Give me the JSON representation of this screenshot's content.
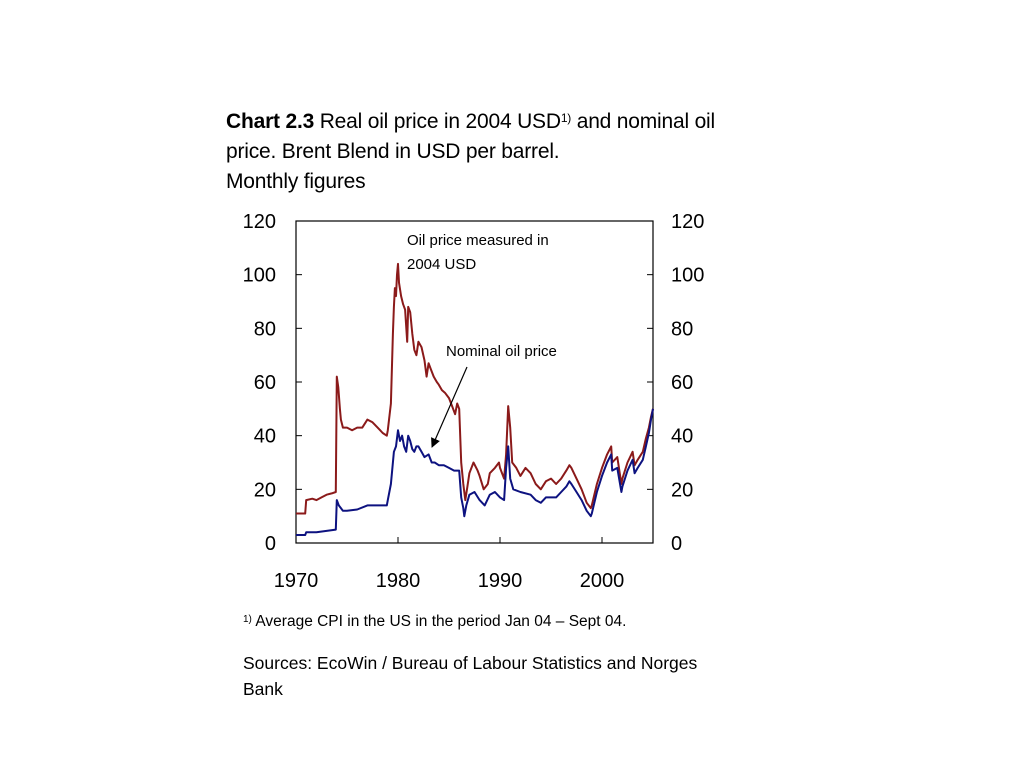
{
  "title": {
    "bold": "Chart 2.3",
    "text": " Real oil price in 2004 USD",
    "sup": "1)",
    "rest": " and nominal oil price. Brent Blend in USD per barrel.",
    "line3": "Monthly figures"
  },
  "footnote": {
    "sup": "1)",
    "text": " Average CPI in the US in the period Jan 04 – Sept 04."
  },
  "sources": "Sources: EcoWin / Bureau of Labour Statistics and Norges Bank",
  "chart_data": {
    "type": "line",
    "xlim": [
      1970,
      2005
    ],
    "ylim": [
      0,
      120
    ],
    "yticks": [
      0,
      20,
      40,
      60,
      80,
      100,
      120
    ],
    "xticks": [
      1970,
      1980,
      1990,
      2000
    ],
    "yticks_right": [
      0,
      20,
      40,
      60,
      80,
      100,
      120
    ],
    "grid": false,
    "annotations": [
      {
        "text_lines": [
          "Oil price measured in",
          "2004 USD"
        ],
        "target_series": "real"
      },
      {
        "text": "Nominal oil price",
        "target_series": "nominal",
        "arrow": true,
        "arrow_target": [
          1983.4,
          35
        ]
      }
    ],
    "colors": {
      "real": "#8B1A1A",
      "nominal": "#0D1280"
    },
    "series": [
      {
        "key": "real",
        "points": [
          [
            1970.0,
            11
          ],
          [
            1970.9,
            11
          ],
          [
            1971.0,
            16
          ],
          [
            1971.6,
            16.5
          ],
          [
            1972.0,
            16
          ],
          [
            1972.5,
            17
          ],
          [
            1973.0,
            18
          ],
          [
            1973.5,
            18.5
          ],
          [
            1973.9,
            19
          ],
          [
            1974.0,
            62
          ],
          [
            1974.15,
            58
          ],
          [
            1974.3,
            50
          ],
          [
            1974.4,
            46
          ],
          [
            1974.6,
            43
          ],
          [
            1975.0,
            43
          ],
          [
            1975.5,
            42
          ],
          [
            1976.0,
            43
          ],
          [
            1976.5,
            43
          ],
          [
            1977.0,
            46
          ],
          [
            1977.5,
            45
          ],
          [
            1978.0,
            43
          ],
          [
            1978.5,
            41
          ],
          [
            1978.9,
            40
          ],
          [
            1979.0,
            42
          ],
          [
            1979.3,
            52
          ],
          [
            1979.5,
            78
          ],
          [
            1979.6,
            88
          ],
          [
            1979.7,
            95
          ],
          [
            1979.8,
            92
          ],
          [
            1979.9,
            100
          ],
          [
            1980.0,
            104
          ],
          [
            1980.1,
            97
          ],
          [
            1980.3,
            92
          ],
          [
            1980.5,
            89
          ],
          [
            1980.7,
            87
          ],
          [
            1980.9,
            75
          ],
          [
            1981.0,
            88
          ],
          [
            1981.2,
            86
          ],
          [
            1981.4,
            78
          ],
          [
            1981.6,
            72
          ],
          [
            1981.8,
            70
          ],
          [
            1982.0,
            75
          ],
          [
            1982.3,
            73
          ],
          [
            1982.6,
            68
          ],
          [
            1982.8,
            62
          ],
          [
            1983.0,
            67
          ],
          [
            1983.2,
            65
          ],
          [
            1983.5,
            62
          ],
          [
            1983.8,
            60
          ],
          [
            1984.0,
            59
          ],
          [
            1984.3,
            57
          ],
          [
            1984.6,
            56
          ],
          [
            1985.0,
            54
          ],
          [
            1985.3,
            51
          ],
          [
            1985.6,
            48
          ],
          [
            1985.8,
            52
          ],
          [
            1986.0,
            50
          ],
          [
            1986.2,
            30
          ],
          [
            1986.4,
            22
          ],
          [
            1986.6,
            16
          ],
          [
            1986.8,
            21
          ],
          [
            1987.0,
            26
          ],
          [
            1987.4,
            30
          ],
          [
            1987.8,
            27
          ],
          [
            1988.0,
            25
          ],
          [
            1988.4,
            20
          ],
          [
            1988.8,
            22
          ],
          [
            1989.0,
            26
          ],
          [
            1989.5,
            28
          ],
          [
            1989.9,
            30
          ],
          [
            1990.0,
            28
          ],
          [
            1990.4,
            24
          ],
          [
            1990.6,
            33
          ],
          [
            1990.8,
            51
          ],
          [
            1991.0,
            43
          ],
          [
            1991.2,
            30
          ],
          [
            1991.6,
            28
          ],
          [
            1992.0,
            25
          ],
          [
            1992.5,
            28
          ],
          [
            1993.0,
            26
          ],
          [
            1993.5,
            22
          ],
          [
            1994.0,
            20
          ],
          [
            1994.5,
            23
          ],
          [
            1995.0,
            24
          ],
          [
            1995.5,
            22
          ],
          [
            1996.0,
            24
          ],
          [
            1996.5,
            27
          ],
          [
            1996.8,
            29
          ],
          [
            1997.0,
            28
          ],
          [
            1997.5,
            24
          ],
          [
            1998.0,
            20
          ],
          [
            1998.5,
            15
          ],
          [
            1998.9,
            13
          ],
          [
            1999.0,
            14
          ],
          [
            1999.5,
            22
          ],
          [
            2000.0,
            28
          ],
          [
            2000.5,
            33
          ],
          [
            2000.9,
            36
          ],
          [
            2001.0,
            30
          ],
          [
            2001.5,
            32
          ],
          [
            2001.9,
            22
          ],
          [
            2002.0,
            24
          ],
          [
            2002.5,
            30
          ],
          [
            2003.0,
            34
          ],
          [
            2003.2,
            29
          ],
          [
            2003.5,
            31
          ],
          [
            2004.0,
            34
          ],
          [
            2004.3,
            39
          ],
          [
            2004.6,
            43
          ],
          [
            2004.8,
            47
          ],
          [
            2005.0,
            50
          ]
        ]
      },
      {
        "key": "nominal",
        "points": [
          [
            1970.0,
            3
          ],
          [
            1970.9,
            3
          ],
          [
            1971.0,
            4
          ],
          [
            1972.0,
            4
          ],
          [
            1973.0,
            4.5
          ],
          [
            1973.9,
            5
          ],
          [
            1974.0,
            16
          ],
          [
            1974.2,
            14
          ],
          [
            1974.4,
            13
          ],
          [
            1974.6,
            12
          ],
          [
            1975.0,
            12
          ],
          [
            1976.0,
            12.5
          ],
          [
            1977.0,
            14
          ],
          [
            1978.0,
            14
          ],
          [
            1978.9,
            14
          ],
          [
            1979.0,
            16
          ],
          [
            1979.3,
            22
          ],
          [
            1979.5,
            30
          ],
          [
            1979.6,
            34
          ],
          [
            1979.8,
            36
          ],
          [
            1980.0,
            42
          ],
          [
            1980.2,
            38
          ],
          [
            1980.4,
            40
          ],
          [
            1980.6,
            36
          ],
          [
            1980.8,
            34
          ],
          [
            1981.0,
            40
          ],
          [
            1981.2,
            38
          ],
          [
            1981.4,
            35
          ],
          [
            1981.6,
            34
          ],
          [
            1981.8,
            36
          ],
          [
            1982.0,
            36
          ],
          [
            1982.3,
            34
          ],
          [
            1982.6,
            32
          ],
          [
            1983.0,
            33
          ],
          [
            1983.3,
            30
          ],
          [
            1983.6,
            30
          ],
          [
            1984.0,
            29
          ],
          [
            1984.5,
            29
          ],
          [
            1985.0,
            28
          ],
          [
            1985.5,
            27
          ],
          [
            1986.0,
            27
          ],
          [
            1986.2,
            17
          ],
          [
            1986.4,
            13
          ],
          [
            1986.5,
            10
          ],
          [
            1986.7,
            14
          ],
          [
            1987.0,
            18
          ],
          [
            1987.5,
            19
          ],
          [
            1988.0,
            16
          ],
          [
            1988.5,
            14
          ],
          [
            1989.0,
            18
          ],
          [
            1989.5,
            19
          ],
          [
            1990.0,
            17
          ],
          [
            1990.4,
            16
          ],
          [
            1990.6,
            28
          ],
          [
            1990.8,
            36
          ],
          [
            1991.0,
            24
          ],
          [
            1991.3,
            20
          ],
          [
            1992.0,
            19
          ],
          [
            1993.0,
            18
          ],
          [
            1993.5,
            16
          ],
          [
            1994.0,
            15
          ],
          [
            1994.5,
            17
          ],
          [
            1995.0,
            17
          ],
          [
            1995.5,
            17
          ],
          [
            1996.0,
            19
          ],
          [
            1996.5,
            21
          ],
          [
            1996.8,
            23
          ],
          [
            1997.0,
            22
          ],
          [
            1997.5,
            19
          ],
          [
            1998.0,
            16
          ],
          [
            1998.5,
            12
          ],
          [
            1998.9,
            10
          ],
          [
            1999.0,
            11
          ],
          [
            1999.5,
            19
          ],
          [
            2000.0,
            25
          ],
          [
            2000.5,
            30
          ],
          [
            2000.9,
            33
          ],
          [
            2001.0,
            27
          ],
          [
            2001.5,
            28
          ],
          [
            2001.9,
            19
          ],
          [
            2002.0,
            21
          ],
          [
            2002.5,
            27
          ],
          [
            2003.0,
            31
          ],
          [
            2003.2,
            26
          ],
          [
            2003.5,
            28
          ],
          [
            2004.0,
            31
          ],
          [
            2004.3,
            36
          ],
          [
            2004.6,
            41
          ],
          [
            2004.8,
            46
          ],
          [
            2005.0,
            50
          ]
        ]
      }
    ]
  }
}
